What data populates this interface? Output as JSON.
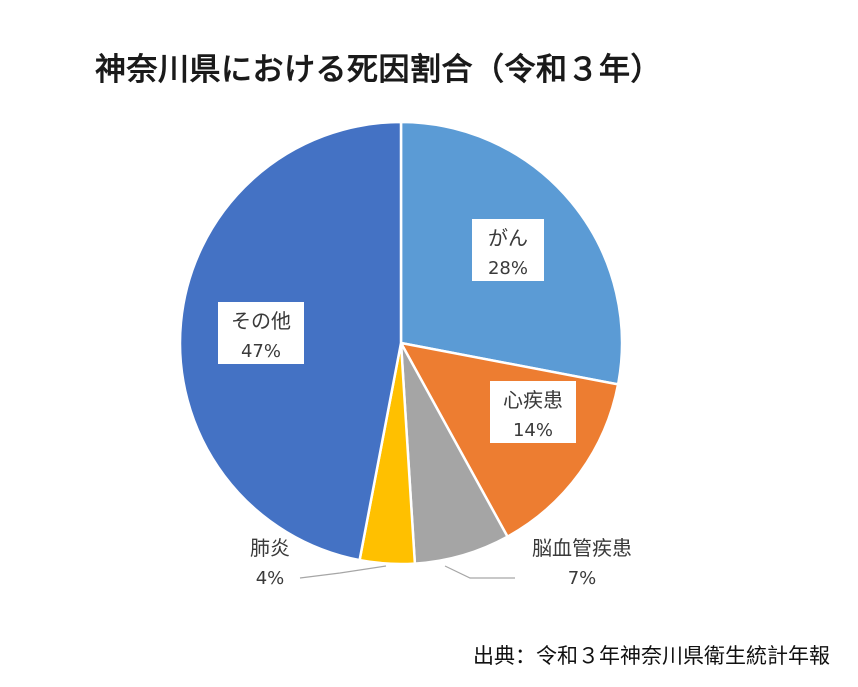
{
  "chart_data": {
    "type": "pie",
    "title": "神奈川県における死因割合（令和３年）",
    "slices": [
      {
        "label": "がん",
        "value": 28,
        "percent_label": "28%",
        "color": "#5B9BD5"
      },
      {
        "label": "心疾患",
        "value": 14,
        "percent_label": "14%",
        "color": "#ED7D31"
      },
      {
        "label": "脳血管疾患",
        "value": 7,
        "percent_label": "7%",
        "color": "#A5A5A5"
      },
      {
        "label": "肺炎",
        "value": 4,
        "percent_label": "4%",
        "color": "#FFC000"
      },
      {
        "label": "その他",
        "value": 47,
        "percent_label": "47%",
        "color": "#4472C4"
      }
    ],
    "source": "出典：令和３年神奈川県衛生統計年報"
  }
}
